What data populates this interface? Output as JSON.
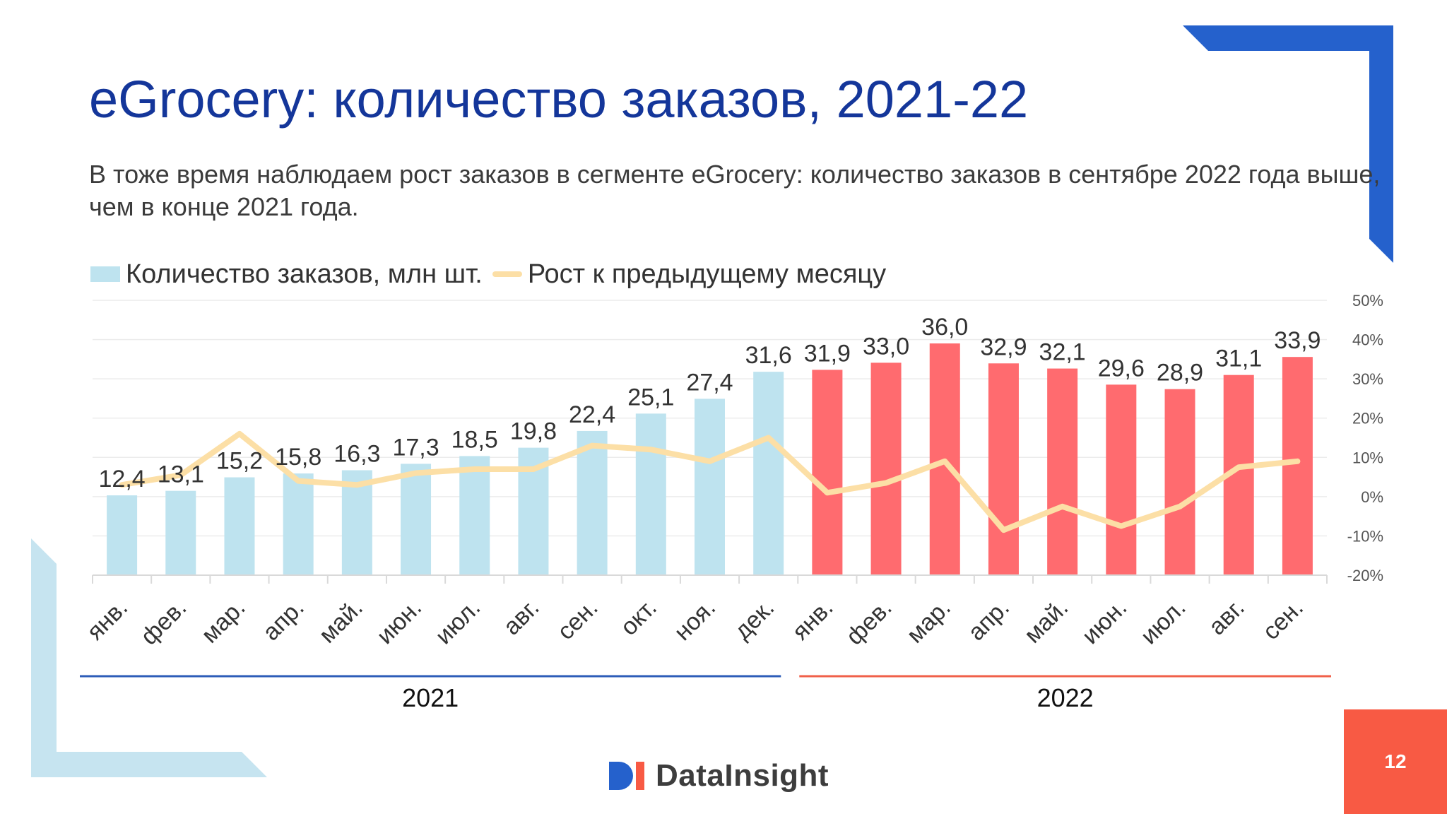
{
  "slide": {
    "title": "eGrocery: количество заказов, 2021-22",
    "subtitle": "В тоже время наблюдаем рост заказов в сегменте eGrocery: количество заказов в сентябре 2022 года выше, чем в конце 2021 года.",
    "page_number": "12",
    "logo_text": "DataInsight"
  },
  "colors": {
    "title": "#14369A",
    "bar_2021": "#BEE3EF",
    "bar_2022": "#FF6B6F",
    "growth_line": "#FCDFA6",
    "year_line_2021": "#2D5DB8",
    "year_line_2022": "#F0604A",
    "corner_blue": "#2561CC",
    "corner_light": "#C6E4F0",
    "page_badge": "#F85A44"
  },
  "chart_data": {
    "type": "bar",
    "categories": [
      "янв.",
      "фев.",
      "мар.",
      "апр.",
      "май.",
      "июн.",
      "июл.",
      "авг.",
      "сен.",
      "окт.",
      "ноя.",
      "дек.",
      "янв.",
      "фев.",
      "мар.",
      "апр.",
      "май.",
      "июн.",
      "июл.",
      "авг.",
      "сен."
    ],
    "groups": [
      {
        "label": "2021",
        "from": 0,
        "to": 11
      },
      {
        "label": "2022",
        "from": 12,
        "to": 20
      }
    ],
    "series": [
      {
        "name": "Количество заказов, млн шт.",
        "kind": "bar",
        "axis": "left",
        "values": [
          12.4,
          13.1,
          15.2,
          15.8,
          16.3,
          17.3,
          18.5,
          19.8,
          22.4,
          25.1,
          27.4,
          31.6,
          31.9,
          33.0,
          36.0,
          32.9,
          32.1,
          29.6,
          28.9,
          31.1,
          33.9
        ],
        "data_labels": [
          "12,4",
          "13,1",
          "15,2",
          "15,8",
          "16,3",
          "17,3",
          "18,5",
          "19,8",
          "22,4",
          "25,1",
          "27,4",
          "31,6",
          "31,9",
          "33,0",
          "36,0",
          "32,9",
          "32,1",
          "29,6",
          "28,9",
          "31,1",
          "33,9"
        ]
      },
      {
        "name": "Рост к предыдущему месяцу",
        "kind": "line",
        "axis": "right",
        "values": [
          3,
          5.5,
          16,
          4,
          3,
          6,
          7,
          7,
          13,
          12,
          9,
          15,
          1,
          3.5,
          9,
          -8.5,
          -2.5,
          -7.5,
          -2.5,
          7.5,
          9
        ]
      }
    ],
    "y_left_range": [
      0,
      40
    ],
    "y_right_range": [
      -20,
      50
    ],
    "y_right_ticks": [
      "50%",
      "40%",
      "30%",
      "20%",
      "10%",
      "0%",
      "-10%",
      "-20%"
    ],
    "gridlines": true,
    "legend_position": "top-left"
  }
}
